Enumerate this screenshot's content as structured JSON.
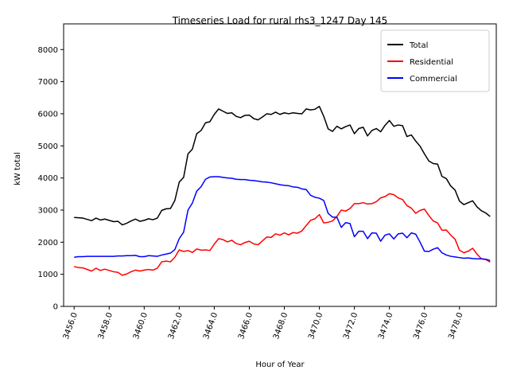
{
  "chart_data": {
    "type": "line",
    "title": "Timeseries Load for rural rhs3_1247  Day 145",
    "xlabel": "Hour of Year",
    "ylabel": "kW total",
    "xlim": [
      3455.4,
      3480.1
    ],
    "ylim": [
      0,
      8800
    ],
    "xticks": [
      3456.0,
      3458.0,
      3460.0,
      3462.0,
      3464.0,
      3466.0,
      3468.0,
      3470.0,
      3472.0,
      3474.0,
      3476.0,
      3478.0
    ],
    "xtick_labels": [
      "3456.0",
      "3458.0",
      "3460.0",
      "3462.0",
      "3464.0",
      "3466.0",
      "3468.0",
      "3470.0",
      "3472.0",
      "3474.0",
      "3476.0",
      "3478.0"
    ],
    "yticks": [
      0,
      1000,
      2000,
      3000,
      4000,
      5000,
      6000,
      7000,
      8000
    ],
    "ytick_labels": [
      "0",
      "1000",
      "2000",
      "3000",
      "4000",
      "5000",
      "6000",
      "7000",
      "8000"
    ],
    "legend_position": "top-right",
    "x_start": 3456.0,
    "x_step": 0.25,
    "series": [
      {
        "name": "Total",
        "color": "#000000",
        "values": [
          2770,
          2760,
          2750,
          2710,
          2670,
          2750,
          2690,
          2720,
          2680,
          2640,
          2650,
          2540,
          2590,
          2660,
          2720,
          2650,
          2680,
          2730,
          2700,
          2750,
          2990,
          3040,
          3050,
          3300,
          3870,
          4020,
          4750,
          4900,
          5380,
          5480,
          5720,
          5750,
          5980,
          6150,
          6080,
          6010,
          6030,
          5920,
          5880,
          5950,
          5960,
          5850,
          5810,
          5900,
          6000,
          5980,
          6050,
          5980,
          6030,
          6000,
          6030,
          6010,
          6000,
          6150,
          6120,
          6140,
          6230,
          5920,
          5530,
          5450,
          5610,
          5530,
          5600,
          5650,
          5380,
          5540,
          5580,
          5310,
          5480,
          5540,
          5440,
          5640,
          5790,
          5610,
          5650,
          5630,
          5290,
          5340,
          5150,
          4990,
          4750,
          4530,
          4450,
          4430,
          4050,
          3980,
          3750,
          3620,
          3280,
          3170,
          3230,
          3290,
          3100,
          2980,
          2910,
          2800
        ]
      },
      {
        "name": "Residential",
        "color": "#ff0000",
        "values": [
          1240,
          1210,
          1200,
          1150,
          1100,
          1190,
          1120,
          1160,
          1120,
          1080,
          1060,
          970,
          1010,
          1080,
          1130,
          1100,
          1130,
          1150,
          1130,
          1190,
          1390,
          1410,
          1390,
          1530,
          1760,
          1710,
          1740,
          1680,
          1790,
          1750,
          1760,
          1740,
          1940,
          2110,
          2080,
          2010,
          2060,
          1960,
          1920,
          1990,
          2030,
          1950,
          1920,
          2040,
          2160,
          2150,
          2260,
          2220,
          2290,
          2230,
          2300,
          2280,
          2350,
          2520,
          2680,
          2730,
          2860,
          2600,
          2620,
          2660,
          2800,
          3000,
          2970,
          3050,
          3200,
          3200,
          3230,
          3190,
          3200,
          3260,
          3380,
          3420,
          3510,
          3480,
          3380,
          3330,
          3140,
          3060,
          2900,
          2990,
          3030,
          2830,
          2660,
          2600,
          2370,
          2380,
          2220,
          2090,
          1750,
          1670,
          1720,
          1810,
          1630,
          1480,
          1460,
          1380
        ]
      },
      {
        "name": "Commercial",
        "color": "#0000ff",
        "values": [
          1530,
          1550,
          1550,
          1560,
          1560,
          1560,
          1560,
          1560,
          1560,
          1560,
          1570,
          1570,
          1580,
          1580,
          1590,
          1550,
          1550,
          1580,
          1570,
          1560,
          1600,
          1630,
          1660,
          1770,
          2110,
          2310,
          3000,
          3220,
          3590,
          3730,
          3960,
          4030,
          4040,
          4040,
          4020,
          4000,
          3990,
          3960,
          3950,
          3950,
          3930,
          3920,
          3900,
          3880,
          3870,
          3850,
          3820,
          3790,
          3770,
          3760,
          3720,
          3710,
          3660,
          3640,
          3460,
          3400,
          3370,
          3300,
          2900,
          2780,
          2780,
          2460,
          2610,
          2580,
          2170,
          2340,
          2340,
          2110,
          2290,
          2280,
          2030,
          2220,
          2260,
          2100,
          2260,
          2280,
          2140,
          2290,
          2250,
          2000,
          1720,
          1710,
          1780,
          1830,
          1670,
          1600,
          1560,
          1540,
          1520,
          1500,
          1510,
          1490,
          1480,
          1480,
          1470,
          1430
        ]
      }
    ]
  }
}
